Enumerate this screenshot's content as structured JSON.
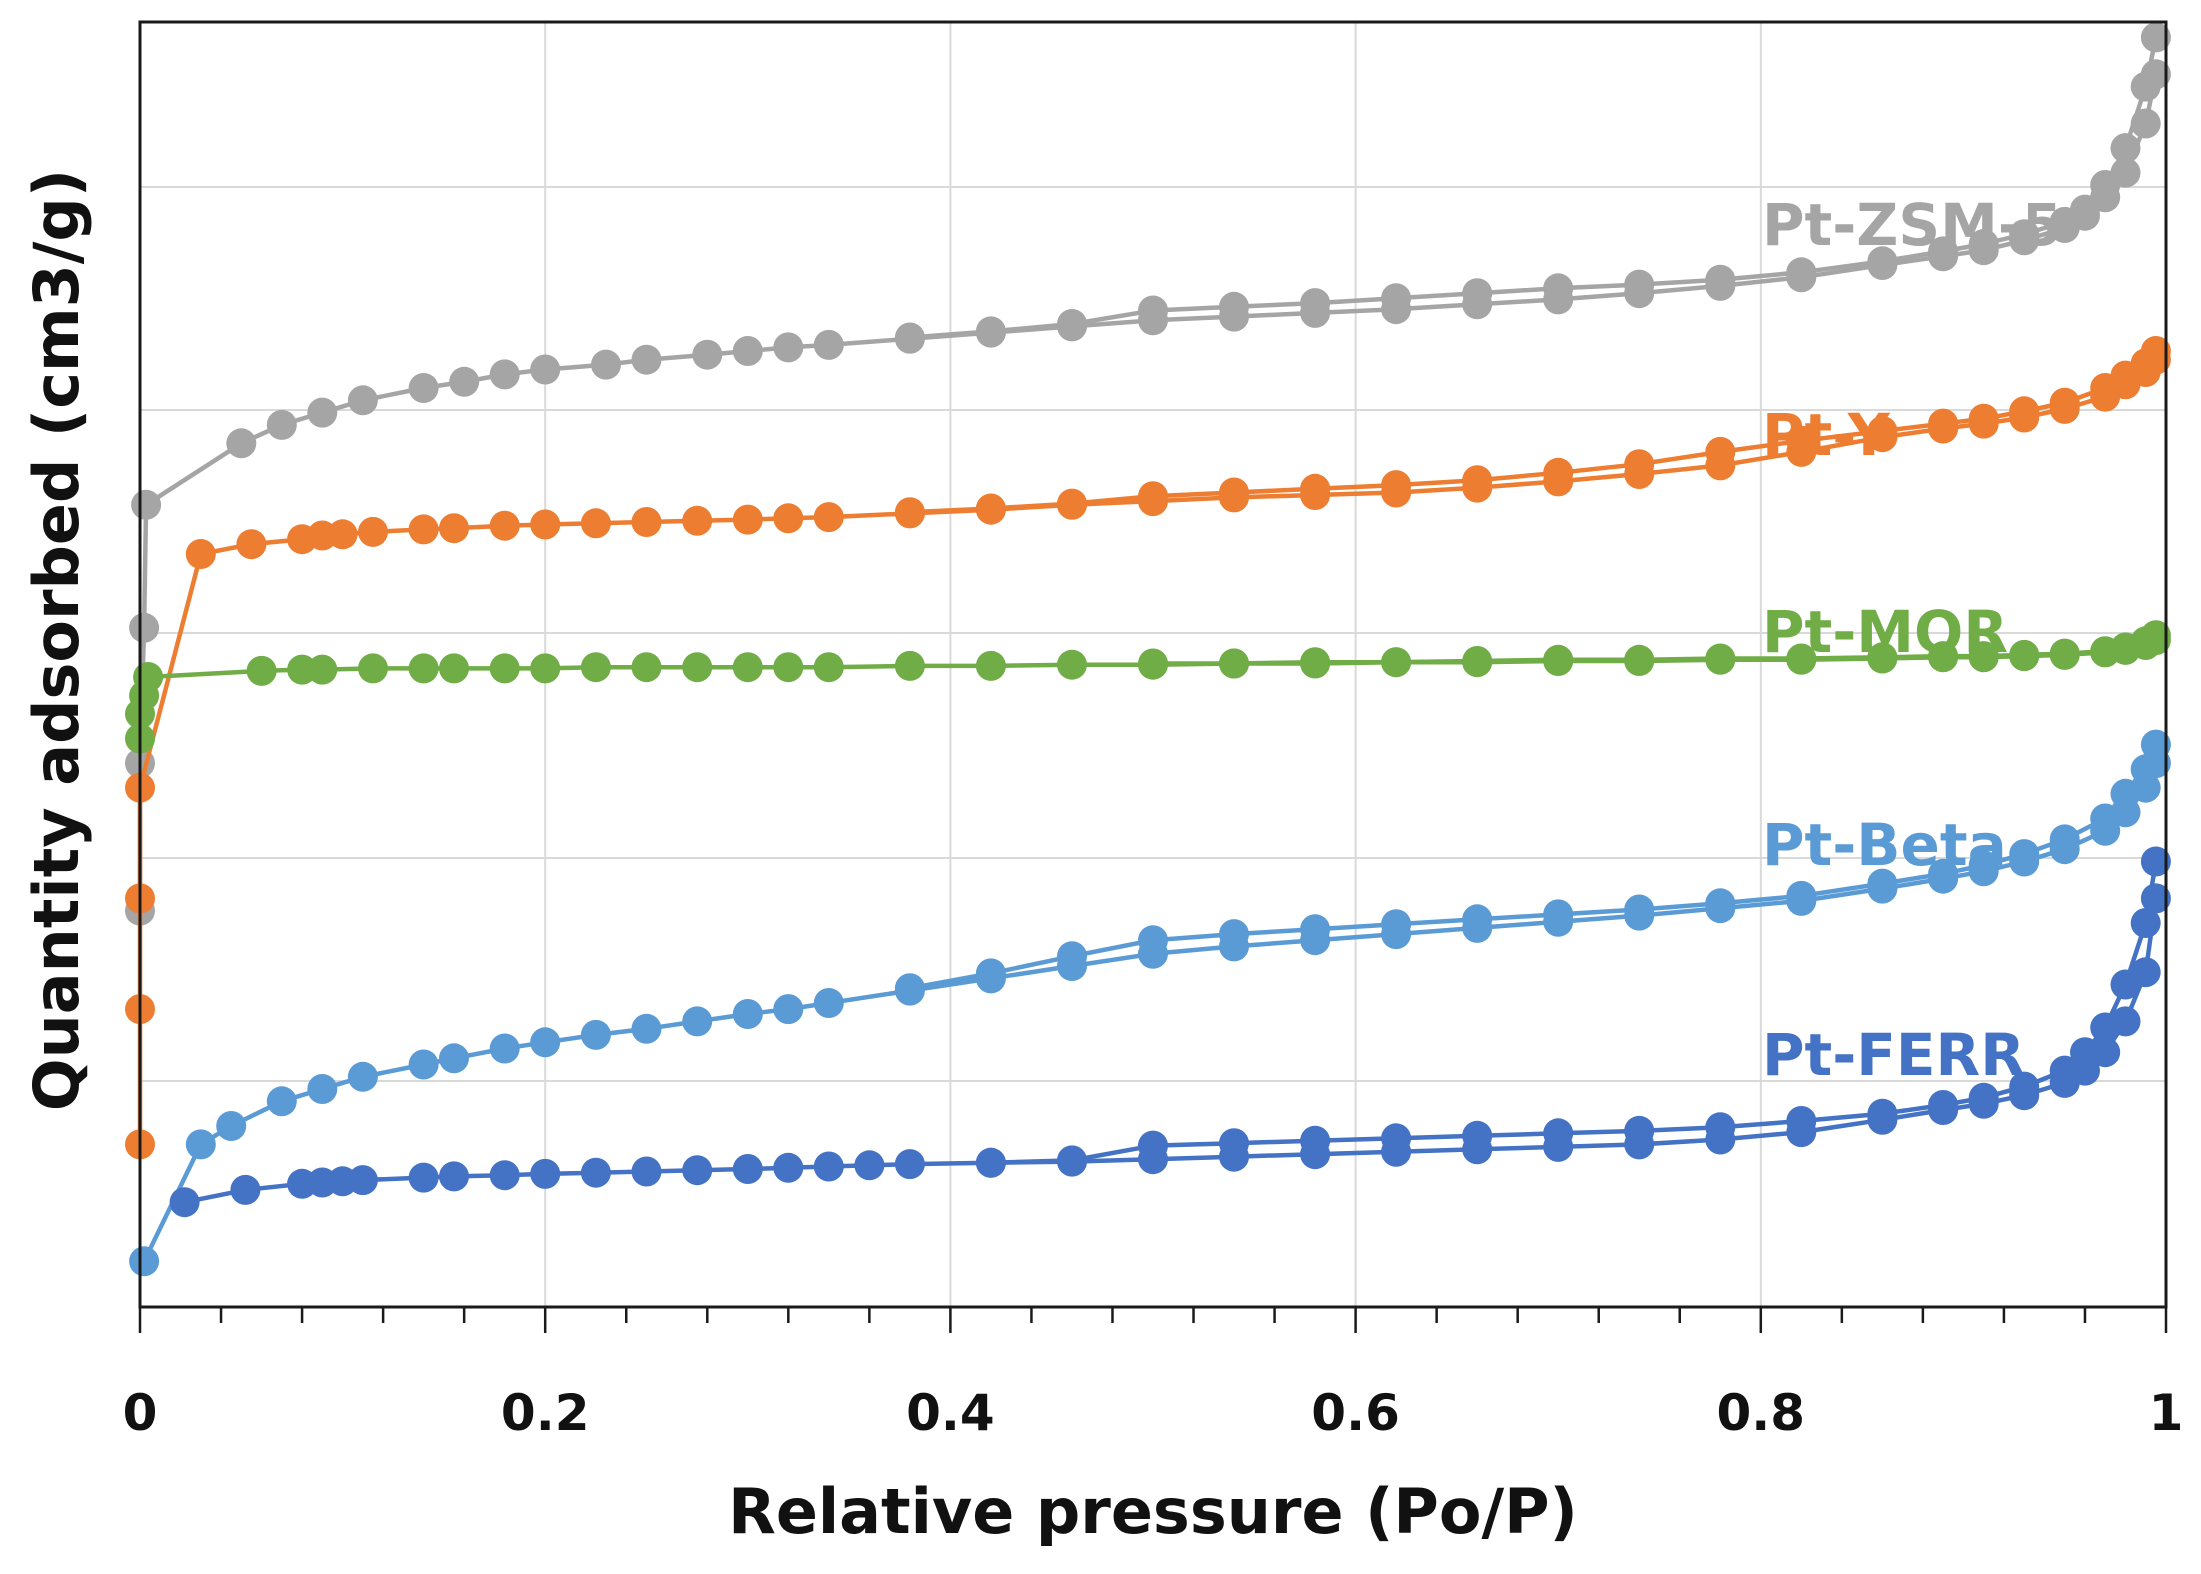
{
  "chart_data": {
    "type": "scatter",
    "title": "",
    "xlabel": "Relative pressure (Po/P)",
    "ylabel": "Quantity adsorbed (cm3/g)",
    "xlim": [
      0,
      1
    ],
    "ylim": [
      0,
      100
    ],
    "x_ticks": [
      0,
      0.2,
      0.4,
      0.6,
      0.8,
      1
    ],
    "x_tick_labels": [
      "0",
      "0.2",
      "0.4",
      "0.6",
      "0.8",
      "1"
    ],
    "y_gridlines": [
      20,
      40,
      60,
      80,
      100
    ],
    "grid": true,
    "y_tick_labels_visible": false,
    "series": [
      {
        "name": "Pt-ZSM-5",
        "color": "#A5A5A5",
        "label": "Pt-ZSM-5",
        "adsorption": [
          [
            0.0,
            31
          ],
          [
            0.0,
            43
          ],
          [
            0.002,
            54
          ],
          [
            0.003,
            64
          ],
          [
            0.05,
            69.0
          ],
          [
            0.07,
            70.5
          ],
          [
            0.09,
            71.5
          ],
          [
            0.11,
            72.5
          ],
          [
            0.14,
            73.5
          ],
          [
            0.16,
            74.0
          ],
          [
            0.18,
            74.6
          ],
          [
            0.2,
            75.0
          ],
          [
            0.23,
            75.4
          ],
          [
            0.25,
            75.8
          ],
          [
            0.28,
            76.2
          ],
          [
            0.3,
            76.5
          ],
          [
            0.32,
            76.8
          ],
          [
            0.34,
            77.0
          ],
          [
            0.38,
            77.5
          ],
          [
            0.42,
            78.0
          ],
          [
            0.46,
            78.5
          ],
          [
            0.5,
            79.0
          ],
          [
            0.54,
            79.3
          ],
          [
            0.58,
            79.6
          ],
          [
            0.62,
            79.9
          ],
          [
            0.66,
            80.3
          ],
          [
            0.7,
            80.7
          ],
          [
            0.74,
            81.2
          ],
          [
            0.78,
            81.8
          ],
          [
            0.82,
            82.5
          ],
          [
            0.86,
            83.5
          ],
          [
            0.89,
            84.2
          ],
          [
            0.91,
            84.7
          ],
          [
            0.93,
            85.5
          ],
          [
            0.95,
            86.5
          ],
          [
            0.96,
            87.5
          ],
          [
            0.97,
            89.0
          ],
          [
            0.98,
            91.0
          ],
          [
            0.99,
            95.0
          ],
          [
            0.995,
            99.0
          ]
        ],
        "desorption": [
          [
            0.995,
            102.0
          ],
          [
            0.99,
            98.0
          ],
          [
            0.98,
            93.0
          ],
          [
            0.97,
            90.0
          ],
          [
            0.96,
            88.0
          ],
          [
            0.95,
            87.0
          ],
          [
            0.93,
            86.0
          ],
          [
            0.91,
            85.2
          ],
          [
            0.89,
            84.6
          ],
          [
            0.86,
            83.8
          ],
          [
            0.82,
            82.9
          ],
          [
            0.78,
            82.3
          ],
          [
            0.74,
            81.9
          ],
          [
            0.7,
            81.6
          ],
          [
            0.66,
            81.2
          ],
          [
            0.62,
            80.8
          ],
          [
            0.58,
            80.4
          ],
          [
            0.54,
            80.1
          ],
          [
            0.5,
            79.8
          ],
          [
            0.46,
            78.7
          ],
          [
            0.42,
            78.1
          ],
          [
            0.38,
            77.6
          ]
        ]
      },
      {
        "name": "Pt-Y",
        "color": "#ED7D31",
        "label": "Pt-Y",
        "adsorption": [
          [
            0.0,
            12
          ],
          [
            0.0,
            23
          ],
          [
            0.0,
            32
          ],
          [
            0.0,
            41
          ],
          [
            0.03,
            60.0
          ],
          [
            0.055,
            60.8
          ],
          [
            0.08,
            61.2
          ],
          [
            0.09,
            61.5
          ],
          [
            0.1,
            61.6
          ],
          [
            0.115,
            61.8
          ],
          [
            0.14,
            62.0
          ],
          [
            0.155,
            62.1
          ],
          [
            0.18,
            62.3
          ],
          [
            0.2,
            62.4
          ],
          [
            0.225,
            62.5
          ],
          [
            0.25,
            62.6
          ],
          [
            0.275,
            62.7
          ],
          [
            0.3,
            62.8
          ],
          [
            0.32,
            62.9
          ],
          [
            0.34,
            63.0
          ],
          [
            0.38,
            63.3
          ],
          [
            0.42,
            63.6
          ],
          [
            0.46,
            64.0
          ],
          [
            0.5,
            64.3
          ],
          [
            0.54,
            64.6
          ],
          [
            0.58,
            64.8
          ],
          [
            0.62,
            65.0
          ],
          [
            0.66,
            65.4
          ],
          [
            0.7,
            65.9
          ],
          [
            0.74,
            66.5
          ],
          [
            0.78,
            67.2
          ],
          [
            0.82,
            68.3
          ],
          [
            0.86,
            69.5
          ],
          [
            0.89,
            70.2
          ],
          [
            0.91,
            70.6
          ],
          [
            0.93,
            71.1
          ],
          [
            0.95,
            71.8
          ],
          [
            0.97,
            72.8
          ],
          [
            0.98,
            73.8
          ],
          [
            0.99,
            74.8
          ],
          [
            0.995,
            75.8
          ]
        ],
        "desorption": [
          [
            0.995,
            76.5
          ],
          [
            0.99,
            75.5
          ],
          [
            0.98,
            74.5
          ],
          [
            0.97,
            73.5
          ],
          [
            0.95,
            72.3
          ],
          [
            0.93,
            71.6
          ],
          [
            0.91,
            71.0
          ],
          [
            0.89,
            70.6
          ],
          [
            0.86,
            70.0
          ],
          [
            0.82,
            69.2
          ],
          [
            0.78,
            68.3
          ],
          [
            0.74,
            67.3
          ],
          [
            0.7,
            66.6
          ],
          [
            0.66,
            66.0
          ],
          [
            0.62,
            65.6
          ],
          [
            0.58,
            65.3
          ],
          [
            0.54,
            65.0
          ],
          [
            0.5,
            64.7
          ],
          [
            0.46,
            64.1
          ],
          [
            0.42,
            63.7
          ],
          [
            0.38,
            63.4
          ]
        ]
      },
      {
        "name": "Pt-MOR",
        "color": "#70AD47",
        "label": "Pt-MOR",
        "adsorption": [
          [
            0.0,
            45
          ],
          [
            0.0,
            47
          ],
          [
            0.002,
            48.5
          ],
          [
            0.004,
            50.0
          ],
          [
            0.06,
            50.5
          ],
          [
            0.08,
            50.6
          ],
          [
            0.09,
            50.6
          ],
          [
            0.115,
            50.7
          ],
          [
            0.14,
            50.7
          ],
          [
            0.155,
            50.7
          ],
          [
            0.18,
            50.7
          ],
          [
            0.2,
            50.7
          ],
          [
            0.225,
            50.8
          ],
          [
            0.25,
            50.8
          ],
          [
            0.275,
            50.8
          ],
          [
            0.3,
            50.8
          ],
          [
            0.32,
            50.8
          ],
          [
            0.34,
            50.8
          ],
          [
            0.38,
            50.9
          ],
          [
            0.42,
            50.9
          ],
          [
            0.46,
            51.0
          ],
          [
            0.5,
            51.0
          ],
          [
            0.54,
            51.1
          ],
          [
            0.58,
            51.1
          ],
          [
            0.62,
            51.2
          ],
          [
            0.66,
            51.2
          ],
          [
            0.7,
            51.3
          ],
          [
            0.74,
            51.3
          ],
          [
            0.78,
            51.4
          ],
          [
            0.82,
            51.4
          ],
          [
            0.86,
            51.5
          ],
          [
            0.89,
            51.6
          ],
          [
            0.91,
            51.6
          ],
          [
            0.93,
            51.7
          ],
          [
            0.95,
            51.8
          ],
          [
            0.97,
            52.0
          ],
          [
            0.98,
            52.2
          ],
          [
            0.99,
            52.6
          ],
          [
            0.995,
            53.0
          ]
        ],
        "desorption": [
          [
            0.995,
            53.4
          ],
          [
            0.99,
            52.9
          ],
          [
            0.98,
            52.4
          ],
          [
            0.97,
            52.1
          ],
          [
            0.95,
            51.9
          ],
          [
            0.93,
            51.8
          ],
          [
            0.91,
            51.7
          ],
          [
            0.89,
            51.7
          ],
          [
            0.86,
            51.6
          ],
          [
            0.82,
            51.5
          ],
          [
            0.78,
            51.5
          ],
          [
            0.74,
            51.4
          ],
          [
            0.7,
            51.4
          ],
          [
            0.66,
            51.3
          ],
          [
            0.62,
            51.2
          ],
          [
            0.58,
            51.2
          ],
          [
            0.54,
            51.1
          ],
          [
            0.5,
            51.1
          ]
        ]
      },
      {
        "name": "Pt-Beta",
        "color": "#5B9BD5",
        "label": "Pt-Beta",
        "adsorption": [
          [
            0.002,
            2.5
          ],
          [
            0.03,
            12.0
          ],
          [
            0.045,
            13.5
          ],
          [
            0.07,
            15.5
          ],
          [
            0.09,
            16.5
          ],
          [
            0.11,
            17.5
          ],
          [
            0.14,
            18.5
          ],
          [
            0.155,
            19.0
          ],
          [
            0.18,
            19.8
          ],
          [
            0.2,
            20.3
          ],
          [
            0.225,
            20.9
          ],
          [
            0.25,
            21.4
          ],
          [
            0.275,
            22.0
          ],
          [
            0.3,
            22.6
          ],
          [
            0.32,
            23.0
          ],
          [
            0.34,
            23.5
          ],
          [
            0.38,
            24.5
          ],
          [
            0.42,
            25.5
          ],
          [
            0.46,
            26.5
          ],
          [
            0.5,
            27.5
          ],
          [
            0.54,
            28.1
          ],
          [
            0.58,
            28.6
          ],
          [
            0.62,
            29.1
          ],
          [
            0.66,
            29.6
          ],
          [
            0.7,
            30.1
          ],
          [
            0.74,
            30.6
          ],
          [
            0.78,
            31.2
          ],
          [
            0.82,
            31.8
          ],
          [
            0.86,
            32.8
          ],
          [
            0.89,
            33.6
          ],
          [
            0.91,
            34.2
          ],
          [
            0.93,
            35.0
          ],
          [
            0.95,
            36.0
          ],
          [
            0.97,
            37.5
          ],
          [
            0.98,
            39.0
          ],
          [
            0.99,
            41.0
          ],
          [
            0.995,
            43.0
          ]
        ],
        "desorption": [
          [
            0.995,
            44.5
          ],
          [
            0.99,
            42.5
          ],
          [
            0.98,
            40.5
          ],
          [
            0.97,
            38.5
          ],
          [
            0.95,
            36.8
          ],
          [
            0.93,
            35.6
          ],
          [
            0.91,
            34.7
          ],
          [
            0.89,
            34.0
          ],
          [
            0.86,
            33.2
          ],
          [
            0.82,
            32.2
          ],
          [
            0.78,
            31.6
          ],
          [
            0.74,
            31.1
          ],
          [
            0.7,
            30.7
          ],
          [
            0.66,
            30.3
          ],
          [
            0.62,
            29.9
          ],
          [
            0.58,
            29.5
          ],
          [
            0.54,
            29.1
          ],
          [
            0.5,
            28.6
          ],
          [
            0.46,
            27.3
          ],
          [
            0.42,
            25.9
          ],
          [
            0.38,
            24.7
          ]
        ]
      },
      {
        "name": "Pt-FERR",
        "color": "#4472C4",
        "label": "Pt-FERR",
        "adsorption": [
          [
            0.022,
            7.3
          ],
          [
            0.052,
            8.3
          ],
          [
            0.08,
            8.8
          ],
          [
            0.09,
            8.9
          ],
          [
            0.1,
            9.0
          ],
          [
            0.11,
            9.1
          ],
          [
            0.14,
            9.3
          ],
          [
            0.155,
            9.4
          ],
          [
            0.18,
            9.5
          ],
          [
            0.2,
            9.6
          ],
          [
            0.225,
            9.7
          ],
          [
            0.25,
            9.8
          ],
          [
            0.275,
            9.9
          ],
          [
            0.3,
            10.0
          ],
          [
            0.32,
            10.1
          ],
          [
            0.34,
            10.2
          ],
          [
            0.36,
            10.3
          ],
          [
            0.38,
            10.4
          ],
          [
            0.42,
            10.5
          ],
          [
            0.46,
            10.6
          ],
          [
            0.5,
            10.8
          ],
          [
            0.54,
            11.0
          ],
          [
            0.58,
            11.2
          ],
          [
            0.62,
            11.4
          ],
          [
            0.66,
            11.6
          ],
          [
            0.7,
            11.8
          ],
          [
            0.74,
            12.0
          ],
          [
            0.78,
            12.4
          ],
          [
            0.82,
            13.0
          ],
          [
            0.86,
            14.0
          ],
          [
            0.89,
            14.8
          ],
          [
            0.91,
            15.3
          ],
          [
            0.93,
            16.0
          ],
          [
            0.95,
            17.0
          ],
          [
            0.96,
            18.0
          ],
          [
            0.97,
            19.5
          ],
          [
            0.98,
            22.0
          ],
          [
            0.99,
            26.0
          ],
          [
            0.995,
            32.0
          ]
        ],
        "desorption": [
          [
            0.995,
            35.0
          ],
          [
            0.99,
            30.0
          ],
          [
            0.98,
            25.0
          ],
          [
            0.97,
            21.5
          ],
          [
            0.96,
            19.5
          ],
          [
            0.95,
            18.0
          ],
          [
            0.93,
            16.7
          ],
          [
            0.91,
            15.8
          ],
          [
            0.89,
            15.2
          ],
          [
            0.86,
            14.5
          ],
          [
            0.82,
            13.9
          ],
          [
            0.78,
            13.4
          ],
          [
            0.74,
            13.1
          ],
          [
            0.7,
            12.9
          ],
          [
            0.66,
            12.7
          ],
          [
            0.62,
            12.5
          ],
          [
            0.58,
            12.3
          ],
          [
            0.54,
            12.1
          ],
          [
            0.5,
            11.9
          ],
          [
            0.46,
            10.7
          ],
          [
            0.42,
            10.5
          ]
        ]
      }
    ]
  }
}
